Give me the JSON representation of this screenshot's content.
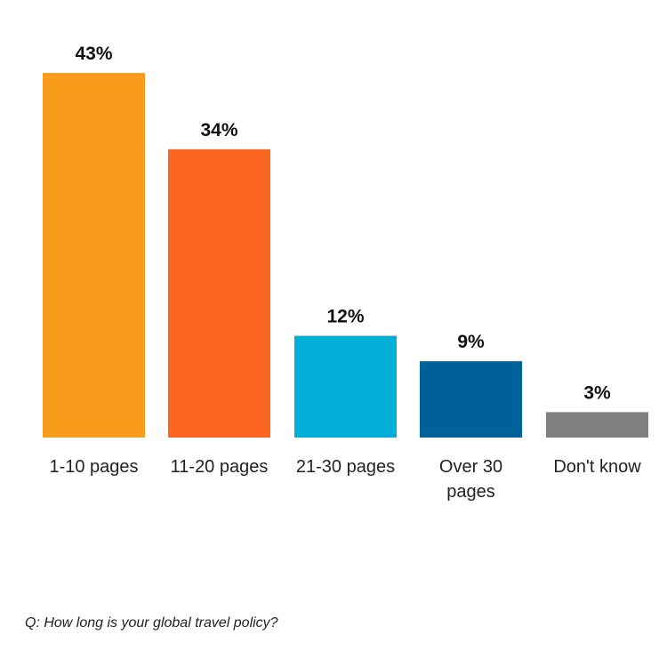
{
  "chart_data": {
    "type": "bar",
    "categories": [
      "1-10 pages",
      "11-20 pages",
      "21-30 pages",
      "Over 30 pages",
      "Don't know"
    ],
    "category_lines": [
      [
        "1-10 pages"
      ],
      [
        "11-20 pages"
      ],
      [
        "21-30 pages"
      ],
      [
        "Over 30",
        "pages"
      ],
      [
        "Don't know"
      ]
    ],
    "values": [
      43,
      34,
      12,
      9,
      3
    ],
    "value_labels": [
      "43%",
      "34%",
      "12%",
      "9%",
      "3%"
    ],
    "colors": [
      "#FA9C1B",
      "#FC6621",
      "#00AED7",
      "#006199",
      "#808080"
    ],
    "ylim": [
      0,
      43
    ],
    "grid": false,
    "legend": "none"
  },
  "footnote": "Q: How long is your global travel policy?"
}
